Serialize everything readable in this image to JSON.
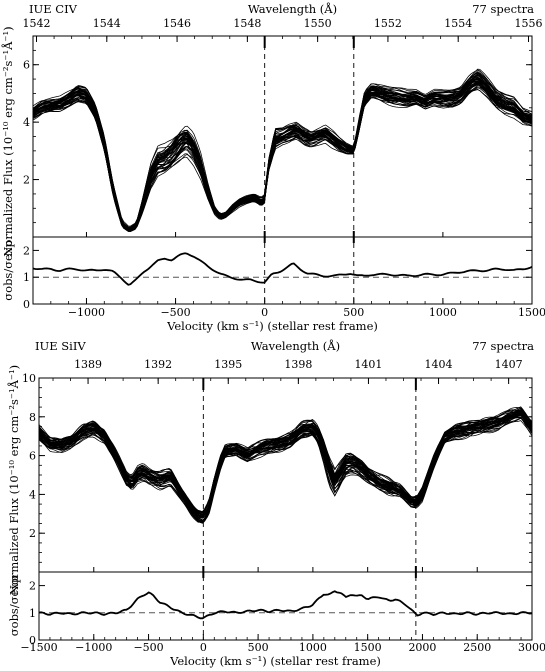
{
  "chart_data": [
    {
      "type": "line",
      "panel": "top",
      "left_title": "IUE CIV",
      "right_title": "77 spectra",
      "top_axis_label": "Wavelength (Å)",
      "top_ticks": [
        1542,
        1544,
        1546,
        1548,
        1550,
        1552,
        1554,
        1556
      ],
      "top_xlim": [
        1541.9,
        1556.1
      ],
      "xlabel": "Velocity (km s⁻¹)  (stellar rest frame)",
      "xlim": [
        -1300,
        1500
      ],
      "x_ticks": [
        -1000,
        -500,
        0,
        500,
        1000,
        1500
      ],
      "flux_ylabel": "Normalized Flux (10⁻¹⁰ erg cm⁻²s⁻¹Å⁻¹)",
      "flux_ylim": [
        0,
        7
      ],
      "flux_ticks": [
        2,
        4,
        6
      ],
      "ratio_ylabel": "σobs/σexp",
      "ratio_ylim": [
        0,
        2.5
      ],
      "ratio_ticks": [
        0,
        1,
        2
      ],
      "ratio_reference": 1,
      "vertical_markers": [
        0,
        500
      ],
      "n_spectra": 77,
      "flux_mean": {
        "x": [
          -1300,
          -1250,
          -1200,
          -1150,
          -1100,
          -1050,
          -1000,
          -950,
          -900,
          -850,
          -800,
          -760,
          -720,
          -680,
          -640,
          -600,
          -560,
          -520,
          -480,
          -440,
          -400,
          -360,
          -320,
          -280,
          -250,
          -220,
          -180,
          -140,
          -100,
          -60,
          -20,
          0,
          20,
          60,
          100,
          140,
          180,
          220,
          260,
          300,
          340,
          380,
          420,
          460,
          500,
          530,
          560,
          600,
          650,
          700,
          750,
          800,
          850,
          900,
          950,
          1000,
          1050,
          1100,
          1150,
          1200,
          1250,
          1300,
          1350,
          1400,
          1450,
          1500
        ],
        "y": [
          4.3,
          4.5,
          4.55,
          4.6,
          4.8,
          5.0,
          4.9,
          4.3,
          3.2,
          1.6,
          0.45,
          0.25,
          0.4,
          1.2,
          2.1,
          2.6,
          2.7,
          2.9,
          3.2,
          3.4,
          3.1,
          2.5,
          1.6,
          0.9,
          0.7,
          0.75,
          1.0,
          1.2,
          1.3,
          1.35,
          1.2,
          1.3,
          2.4,
          3.4,
          3.5,
          3.6,
          3.7,
          3.5,
          3.4,
          3.5,
          3.6,
          3.4,
          3.2,
          3.05,
          3.0,
          3.9,
          4.8,
          5.1,
          5.0,
          4.9,
          4.85,
          4.8,
          4.85,
          4.7,
          4.85,
          4.8,
          4.8,
          4.9,
          5.3,
          5.5,
          5.2,
          4.8,
          4.6,
          4.5,
          4.2,
          4.1
        ]
      },
      "flux_spread": [
        0.25,
        0.3,
        0.3,
        0.3,
        0.3,
        0.3,
        0.3,
        0.3,
        0.3,
        0.25,
        0.12,
        0.08,
        0.1,
        0.25,
        0.4,
        0.5,
        0.55,
        0.6,
        0.65,
        0.6,
        0.55,
        0.45,
        0.3,
        0.15,
        0.12,
        0.12,
        0.15,
        0.15,
        0.15,
        0.15,
        0.15,
        0.15,
        0.2,
        0.35,
        0.3,
        0.35,
        0.35,
        0.35,
        0.3,
        0.3,
        0.3,
        0.3,
        0.25,
        0.2,
        0.15,
        0.3,
        0.35,
        0.3,
        0.3,
        0.3,
        0.3,
        0.3,
        0.3,
        0.3,
        0.3,
        0.3,
        0.3,
        0.3,
        0.35,
        0.4,
        0.35,
        0.35,
        0.35,
        0.35,
        0.3,
        0.3
      ],
      "ratio": {
        "x": [
          -1300,
          -1250,
          -1200,
          -1150,
          -1100,
          -1050,
          -1000,
          -950,
          -900,
          -850,
          -800,
          -760,
          -720,
          -680,
          -640,
          -600,
          -560,
          -520,
          -480,
          -440,
          -400,
          -360,
          -320,
          -280,
          -240,
          -200,
          -160,
          -120,
          -80,
          -40,
          0,
          40,
          80,
          120,
          160,
          200,
          240,
          280,
          320,
          360,
          400,
          440,
          480,
          520,
          560,
          600,
          700,
          800,
          900,
          1000,
          1100,
          1200,
          1250,
          1300,
          1350,
          1400,
          1450,
          1500
        ],
        "y": [
          1.35,
          1.3,
          1.3,
          1.25,
          1.3,
          1.3,
          1.25,
          1.25,
          1.3,
          1.2,
          0.95,
          0.7,
          0.9,
          1.2,
          1.4,
          1.6,
          1.7,
          1.65,
          1.8,
          1.9,
          1.8,
          1.6,
          1.4,
          1.25,
          1.1,
          1.0,
          0.95,
          0.9,
          0.9,
          0.85,
          0.8,
          1.1,
          1.2,
          1.35,
          1.5,
          1.3,
          1.15,
          1.1,
          1.05,
          1.05,
          1.05,
          1.1,
          1.15,
          1.05,
          1.05,
          1.1,
          1.1,
          1.05,
          1.1,
          1.1,
          1.2,
          1.25,
          1.25,
          1.3,
          1.3,
          1.25,
          1.3,
          1.4
        ]
      }
    },
    {
      "type": "line",
      "panel": "bottom",
      "left_title": "IUE  SiIV",
      "right_title": "77 spectra",
      "top_axis_label": "Wavelength (Å)",
      "top_ticks": [
        1389,
        1392,
        1395,
        1398,
        1401,
        1404,
        1407
      ],
      "top_xlim": [
        1386.9,
        1408.0
      ],
      "xlabel": "Velocity (km s⁻¹)  (stellar rest frame)",
      "xlim": [
        -1500,
        3000
      ],
      "x_ticks": [
        -1500,
        -1000,
        -500,
        0,
        500,
        1000,
        1500,
        2000,
        2500,
        3000
      ],
      "flux_ylabel": "Normalized Flux (10⁻¹⁰ erg cm⁻²s⁻¹Å⁻¹)",
      "flux_ylim": [
        0,
        10
      ],
      "flux_ticks": [
        2,
        4,
        6,
        8,
        10
      ],
      "ratio_ylabel": "σobs/σexp",
      "ratio_ylim": [
        0,
        2.5
      ],
      "ratio_ticks": [
        0,
        1,
        2
      ],
      "ratio_reference": 1,
      "vertical_markers": [
        0,
        1940
      ],
      "n_spectra": 77,
      "flux_mean": {
        "x": [
          -1500,
          -1400,
          -1300,
          -1200,
          -1100,
          -1000,
          -900,
          -800,
          -700,
          -650,
          -600,
          -550,
          -500,
          -450,
          -400,
          -350,
          -300,
          -250,
          -200,
          -150,
          -100,
          -50,
          0,
          50,
          100,
          150,
          200,
          300,
          400,
          500,
          600,
          700,
          800,
          900,
          1000,
          1050,
          1100,
          1150,
          1200,
          1250,
          1300,
          1350,
          1400,
          1450,
          1500,
          1550,
          1600,
          1650,
          1700,
          1750,
          1800,
          1850,
          1900,
          1950,
          2000,
          2050,
          2100,
          2150,
          2200,
          2300,
          2400,
          2500,
          2600,
          2700,
          2800,
          2900,
          3000
        ],
        "y": [
          7.2,
          6.6,
          6.5,
          6.7,
          7.2,
          7.4,
          7.0,
          6.0,
          4.8,
          4.6,
          5.0,
          5.1,
          4.9,
          4.8,
          4.7,
          4.8,
          4.9,
          4.5,
          4.0,
          3.6,
          3.2,
          2.9,
          2.8,
          3.3,
          4.5,
          5.5,
          6.2,
          6.3,
          6.0,
          6.3,
          6.5,
          6.6,
          6.8,
          7.3,
          7.4,
          7.0,
          6.2,
          5.2,
          4.6,
          5.0,
          5.5,
          5.6,
          5.5,
          5.3,
          5.0,
          4.8,
          4.6,
          4.5,
          4.4,
          4.3,
          4.2,
          3.9,
          3.6,
          3.6,
          4.0,
          4.8,
          5.6,
          6.3,
          6.9,
          7.2,
          7.3,
          7.5,
          7.6,
          7.7,
          8.0,
          8.2,
          7.4
        ]
      },
      "flux_spread": [
        0.35,
        0.35,
        0.35,
        0.35,
        0.35,
        0.35,
        0.35,
        0.35,
        0.4,
        0.4,
        0.4,
        0.4,
        0.4,
        0.4,
        0.4,
        0.4,
        0.4,
        0.4,
        0.35,
        0.3,
        0.3,
        0.3,
        0.3,
        0.35,
        0.4,
        0.4,
        0.35,
        0.35,
        0.35,
        0.35,
        0.35,
        0.35,
        0.4,
        0.4,
        0.45,
        0.5,
        0.55,
        0.6,
        0.6,
        0.6,
        0.55,
        0.5,
        0.45,
        0.45,
        0.4,
        0.4,
        0.4,
        0.4,
        0.4,
        0.35,
        0.3,
        0.3,
        0.3,
        0.3,
        0.35,
        0.35,
        0.35,
        0.35,
        0.35,
        0.35,
        0.35,
        0.35,
        0.35,
        0.35,
        0.35,
        0.35,
        0.35
      ],
      "ratio": {
        "x": [
          -1500,
          -1400,
          -1300,
          -1200,
          -1100,
          -1000,
          -900,
          -800,
          -700,
          -650,
          -600,
          -550,
          -500,
          -450,
          -400,
          -350,
          -300,
          -250,
          -200,
          -150,
          -100,
          -50,
          0,
          50,
          100,
          200,
          300,
          400,
          500,
          600,
          700,
          800,
          900,
          1000,
          1050,
          1100,
          1150,
          1200,
          1250,
          1300,
          1350,
          1400,
          1450,
          1500,
          1550,
          1600,
          1650,
          1700,
          1750,
          1800,
          1850,
          1900,
          1950,
          2000,
          2100,
          2200,
          2300,
          2400,
          2500,
          2600,
          2700,
          2800,
          2900,
          3000
        ],
        "y": [
          1.0,
          0.95,
          1.0,
          0.95,
          1.0,
          1.0,
          0.95,
          1.0,
          1.1,
          1.3,
          1.5,
          1.65,
          1.75,
          1.6,
          1.4,
          1.3,
          1.2,
          1.1,
          1.0,
          0.95,
          0.9,
          0.85,
          0.8,
          0.9,
          1.0,
          1.05,
          1.0,
          1.05,
          1.1,
          1.05,
          1.1,
          1.05,
          1.15,
          1.3,
          1.5,
          1.7,
          1.65,
          1.8,
          1.75,
          1.55,
          1.7,
          1.6,
          1.65,
          1.5,
          1.55,
          1.6,
          1.5,
          1.45,
          1.5,
          1.4,
          1.3,
          1.1,
          0.9,
          1.0,
          0.95,
          1.0,
          0.95,
          1.0,
          0.95,
          1.0,
          1.0,
          0.95,
          1.0,
          1.0
        ]
      }
    }
  ]
}
